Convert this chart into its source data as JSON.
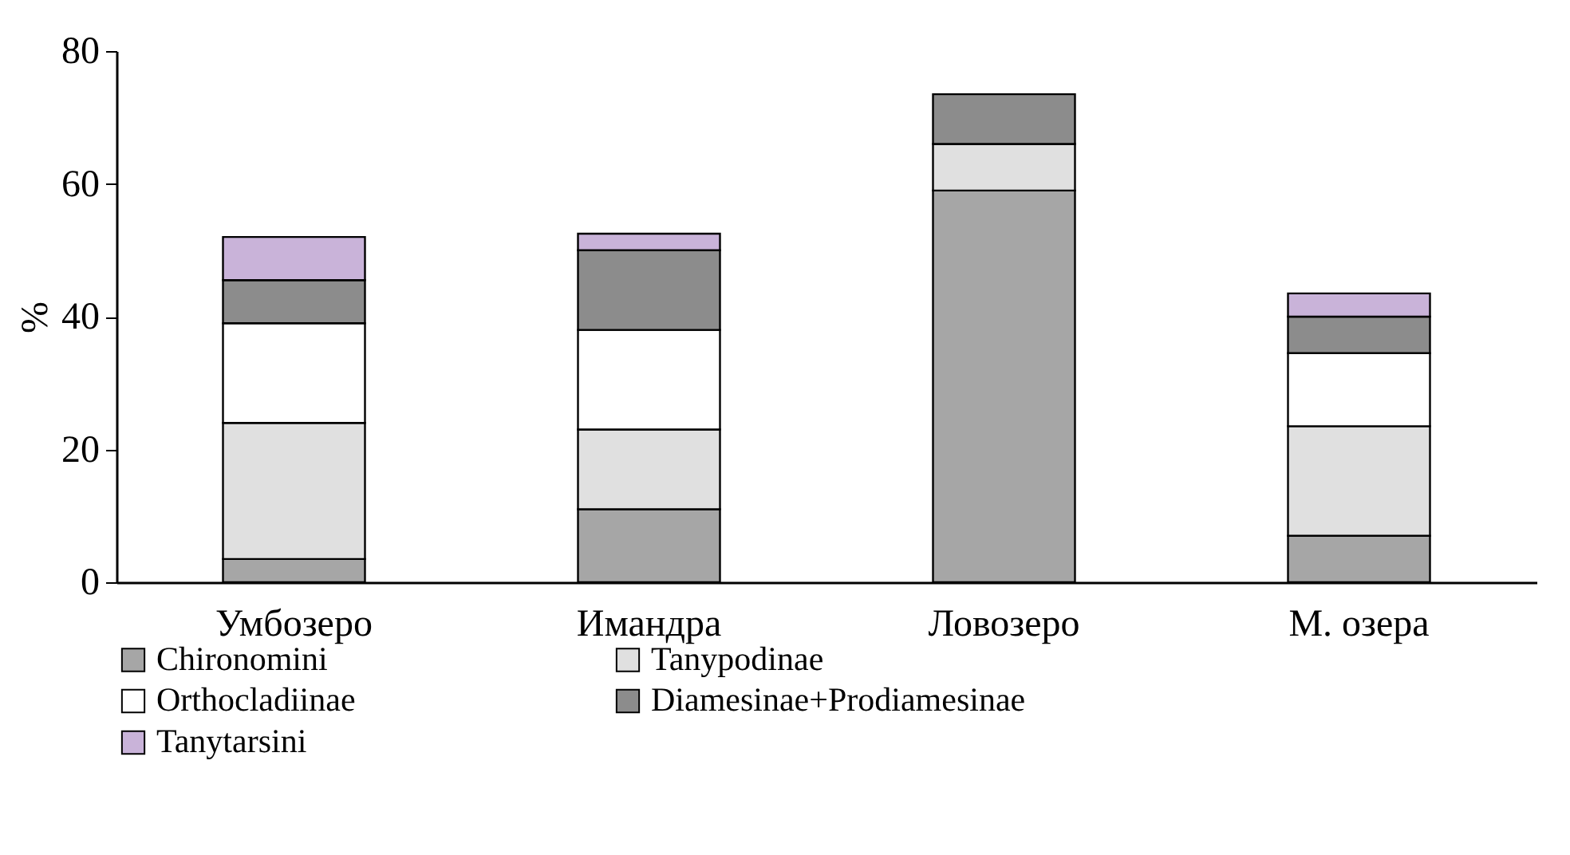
{
  "chart_data": {
    "type": "bar",
    "stacked": true,
    "ylabel": "%",
    "categories": [
      "Умбозеро",
      "Имандра",
      "Ловозеро",
      "М. озера"
    ],
    "ylim": [
      0,
      80
    ],
    "yticks": [
      0,
      20,
      40,
      60,
      80
    ],
    "grid": false,
    "legend": "bottom left",
    "series": [
      {
        "name": "Chironomini",
        "color": "#a6a6a6",
        "values": [
          3.5,
          11,
          59,
          7
        ]
      },
      {
        "name": "Tanypodinae",
        "color": "#e0e0e0",
        "values": [
          20.5,
          12,
          7,
          16.5
        ]
      },
      {
        "name": "Orthocladiinae",
        "color": "#ffffff",
        "values": [
          15,
          15,
          0,
          11
        ]
      },
      {
        "name": "Diamesinae+Prodiamesinae",
        "color": "#8c8c8c",
        "values": [
          6.5,
          12,
          7.5,
          5.5
        ]
      },
      {
        "name": "Tanytarsini",
        "color": "#c9b3d9",
        "values": [
          6.5,
          2.5,
          0,
          3.5
        ]
      }
    ]
  }
}
